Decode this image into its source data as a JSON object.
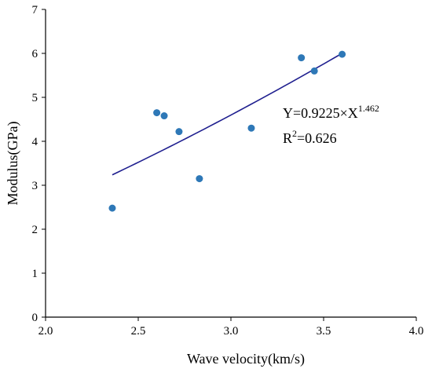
{
  "chart_data": {
    "type": "scatter",
    "title": "",
    "xlabel": "Wave velocity(km/s)",
    "ylabel": "Modulus(GPa)",
    "xlim": [
      2.0,
      4.0
    ],
    "ylim": [
      0,
      7
    ],
    "xticks": [
      2.0,
      2.5,
      3.0,
      3.5,
      4.0
    ],
    "xtick_labels": [
      "2.0",
      "2.5",
      "3.0",
      "3.5",
      "4.0"
    ],
    "yticks": [
      0,
      1,
      2,
      3,
      4,
      5,
      6,
      7
    ],
    "ytick_labels": [
      "0",
      "1",
      "2",
      "3",
      "4",
      "5",
      "6",
      "7"
    ],
    "grid": false,
    "series": [
      {
        "points": [
          {
            "x": 2.36,
            "y": 2.48
          },
          {
            "x": 2.6,
            "y": 4.65
          },
          {
            "x": 2.64,
            "y": 4.58
          },
          {
            "x": 2.72,
            "y": 4.22
          },
          {
            "x": 2.83,
            "y": 3.15
          },
          {
            "x": 3.11,
            "y": 4.3
          },
          {
            "x": 3.38,
            "y": 5.9
          },
          {
            "x": 3.45,
            "y": 5.6
          },
          {
            "x": 3.6,
            "y": 5.98
          }
        ],
        "color": "#2e78b7"
      }
    ],
    "fit": {
      "coefficient": 0.9225,
      "exponent": 1.462,
      "x_range": [
        2.36,
        3.6
      ],
      "color": "#1f1f8f"
    },
    "annotations": {
      "equation_main": "Y=0.9225×X",
      "equation_sup": "1.462",
      "r2_base": "R",
      "r2_sup": "2",
      "r2_value": "=0.626"
    }
  }
}
